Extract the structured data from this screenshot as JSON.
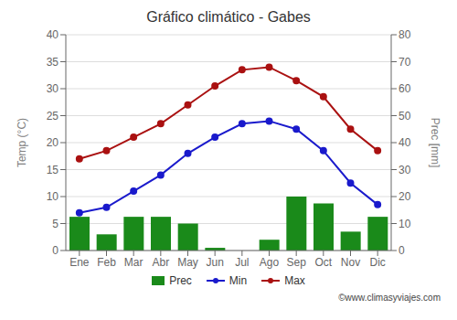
{
  "chart_data": {
    "type": "bar",
    "title": "Gráfico climático - Gabes",
    "categories": [
      "Ene",
      "Feb",
      "Mar",
      "Abr",
      "May",
      "Jun",
      "Jul",
      "Ago",
      "Sep",
      "Oct",
      "Nov",
      "Dic"
    ],
    "series": [
      {
        "name": "Prec",
        "type": "bar",
        "axis": "y2",
        "color": "#1a8a1a",
        "values": [
          12.5,
          6.0,
          12.5,
          12.5,
          10.0,
          1.0,
          0.0,
          4.0,
          20.0,
          17.5,
          7.0,
          12.5
        ]
      },
      {
        "name": "Min",
        "type": "line",
        "color": "#1a1acc",
        "marker": "circle",
        "line_style": "solid",
        "values": [
          7.0,
          8.0,
          11.0,
          14.0,
          18.0,
          21.0,
          23.5,
          24.0,
          22.5,
          18.5,
          12.5,
          8.5
        ]
      },
      {
        "name": "Max",
        "type": "line",
        "color": "#aa1111",
        "marker": "circle",
        "line_style": "solid",
        "values": [
          17.0,
          18.5,
          21.0,
          23.5,
          27.0,
          30.5,
          33.5,
          34.0,
          31.5,
          28.5,
          22.5,
          18.5
        ]
      }
    ],
    "ylim": [
      0,
      40
    ],
    "yticks": [
      0,
      5,
      10,
      15,
      20,
      25,
      30,
      35,
      40
    ],
    "y2lim": [
      0,
      80
    ],
    "y2ticks": [
      0,
      10,
      20,
      30,
      40,
      50,
      60,
      70,
      80
    ],
    "ylabel": "Temp (°C)",
    "y2label": "Prec [mm]",
    "grid": true,
    "legend": "bottom",
    "annotations": [
      "©www.climasyviajes.com"
    ]
  }
}
